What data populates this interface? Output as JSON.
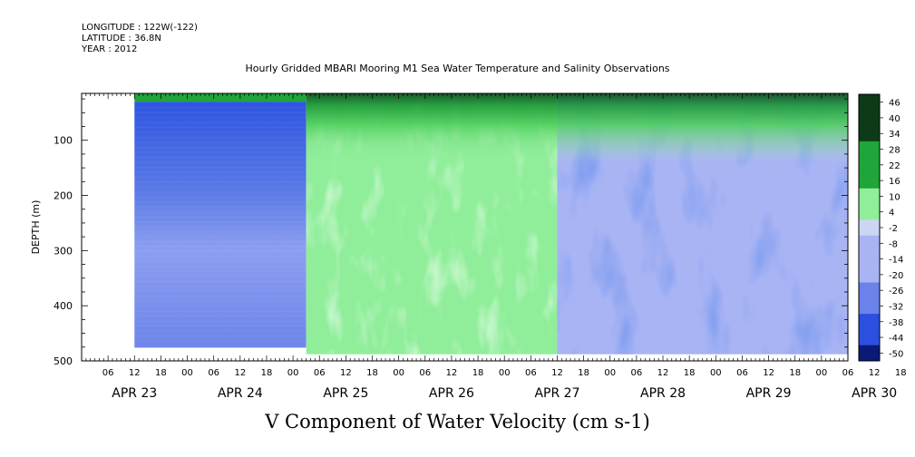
{
  "header": {
    "longitude": "LONGITUDE : 122W(-122)",
    "latitude": "LATITUDE : 36.8N",
    "year": "YEAR : 2012"
  },
  "title": "Hourly Gridded MBARI Mooring M1 Sea Water Temperature and Salinity Observations",
  "footer_label": "V Component of Water Velocity (cm s-1)",
  "chart_data": {
    "type": "heatmap",
    "title": "Hourly Gridded MBARI Mooring M1 Sea Water Temperature and Salinity Observations",
    "xlabel": "",
    "ylabel": "DEPTH (m)",
    "variable": "V Component of Water Velocity (cm s-1)",
    "x_axis": {
      "hour_tick_labels": [
        "06",
        "12",
        "18",
        "00",
        "06",
        "12",
        "18",
        "00",
        "06",
        "12",
        "18",
        "00",
        "06",
        "12",
        "18",
        "00",
        "06",
        "12",
        "18",
        "00",
        "06",
        "12",
        "18",
        "00",
        "06",
        "12",
        "18",
        "00",
        "06",
        "12",
        "18",
        "00"
      ],
      "date_labels": [
        "APR 23",
        "APR 24",
        "APR 25",
        "APR 26",
        "APR 27",
        "APR 28",
        "APR 29",
        "APR 30"
      ],
      "range": [
        "2012-04-23T00:00",
        "2012-04-30T06:00"
      ]
    },
    "y_axis": {
      "ticks": [
        100,
        200,
        300,
        400,
        500
      ],
      "range": [
        500,
        15
      ],
      "inverted": true
    },
    "colorbar": {
      "labels": [
        46,
        40,
        34,
        28,
        22,
        16,
        10,
        4,
        -2,
        -8,
        -14,
        -20,
        -26,
        -32,
        -38,
        -44,
        -50
      ],
      "colors": {
        "dark_green": "#0d3b18",
        "mid_green": "#1fa53a",
        "light_green": "#90ee9a",
        "near_zero": "#ccd6f4",
        "light_blue": "#a9b4f4",
        "mid_blue": "#6a82ea",
        "deep_blue": "#2c4fe0",
        "navy": "#0a1a78"
      }
    },
    "regions": [
      {
        "from": "2012-04-23T12:00",
        "to": "2012-04-25T03:00",
        "surface_value": 18,
        "subsurface_value": -13
      },
      {
        "from": "2012-04-25T03:00",
        "to": "2012-04-27T12:00",
        "surface_value": 30,
        "subsurface_value": 4
      },
      {
        "from": "2012-04-27T12:00",
        "to": "2012-04-30T06:00",
        "surface_value": 14,
        "subsurface_value": -18
      }
    ]
  }
}
